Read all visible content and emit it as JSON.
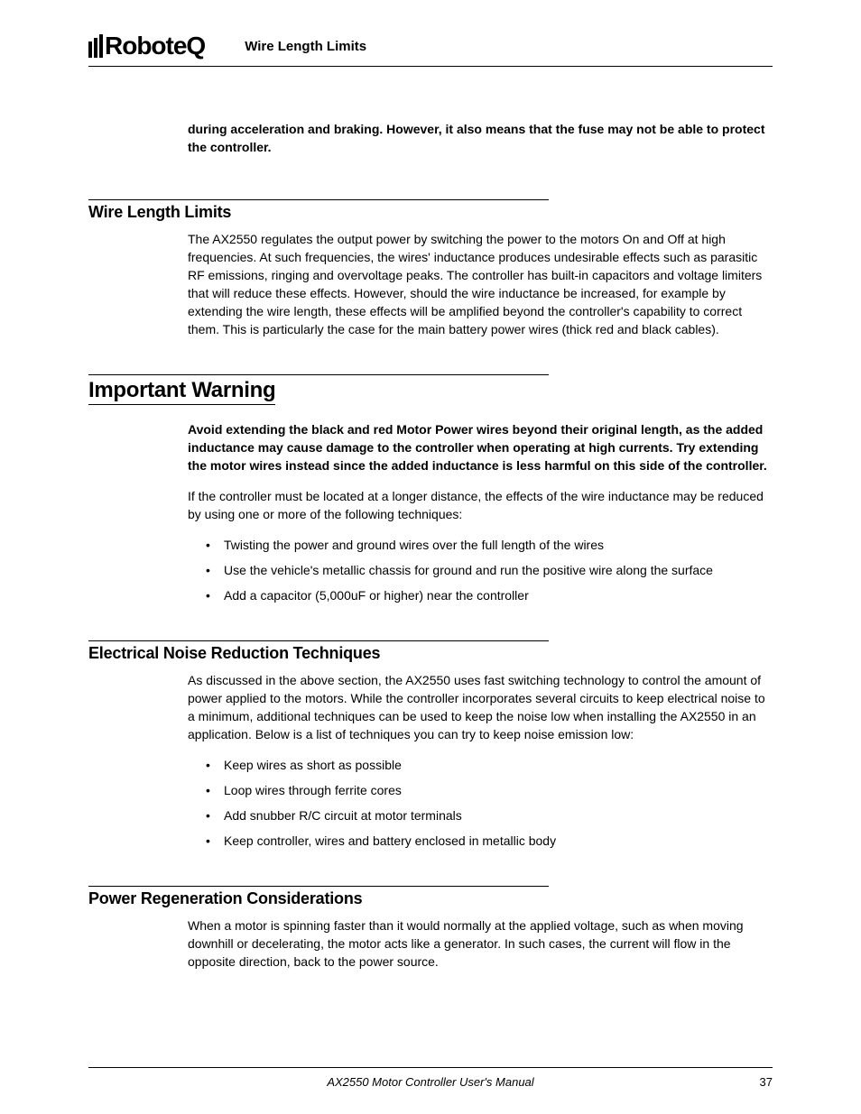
{
  "header": {
    "brand": "RoboteQ",
    "section_label": "Wire Length Limits"
  },
  "intro_continuation": "during acceleration and braking. However, it also means that the fuse may not be able to protect the controller.",
  "sections": {
    "wire_length": {
      "title": "Wire Length Limits",
      "para": "The AX2550 regulates the output power by switching the power to the motors On and Off at high frequencies. At such frequencies, the wires' inductance produces undesirable effects such as parasitic RF emissions, ringing and overvoltage peaks. The controller has built-in capacitors and voltage limiters that will reduce these effects. However, should the wire inductance be increased, for example by extending the wire length, these effects will be amplified beyond the controller's capability to correct them. This is particularly the case for the main battery power wires (thick red and black cables)."
    },
    "warning": {
      "title": "Important Warning",
      "bold_para": "Avoid extending the black and red Motor Power wires beyond their original length, as the added inductance may cause damage to the controller when operating at high currents. Try extending the motor wires instead since the added inductance is less harmful on this side of the controller.",
      "para": "If the controller must be located at a longer distance, the effects of the wire inductance may be reduced by using one or more of the following techniques:",
      "bullets": [
        "Twisting the power and ground wires over the full length of the wires",
        "Use the vehicle's metallic chassis for ground and run the positive wire along the surface",
        "Add a capacitor (5,000uF or higher) near the controller"
      ]
    },
    "noise": {
      "title": "Electrical Noise Reduction Techniques",
      "para": "As discussed in the above section, the AX2550 uses fast switching technology to control the amount of power applied to the motors. While the controller incorporates several circuits to keep electrical noise to a minimum, additional techniques can be used to keep the noise low when installing the AX2550 in an application. Below is a list of techniques you can try to keep noise emission low:",
      "bullets": [
        "Keep wires as short as possible",
        "Loop wires through ferrite cores",
        "Add snubber R/C circuit at motor terminals",
        "Keep controller, wires and battery enclosed in metallic body"
      ]
    },
    "regen": {
      "title": "Power Regeneration Considerations",
      "para": "When a motor is spinning faster than it would normally at the applied voltage, such as when moving downhill or decelerating, the motor acts like a generator. In such cases, the current will flow in the opposite direction, back to the power source."
    }
  },
  "footer": {
    "doc_title": "AX2550 Motor Controller User's Manual",
    "page_number": "37"
  }
}
